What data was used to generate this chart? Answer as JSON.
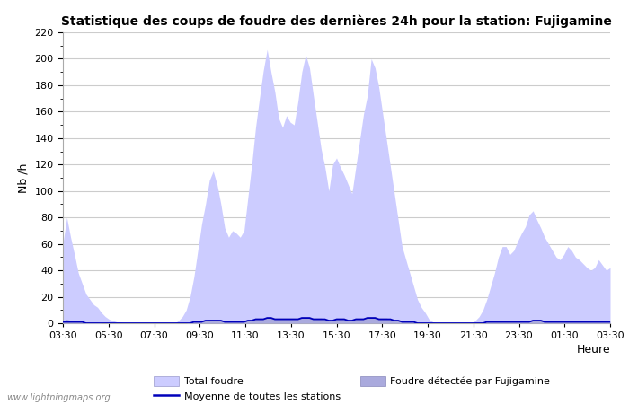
{
  "title": "Statistique des coups de foudre des dernières 24h pour la station: Fujigamine",
  "xlabel": "Heure",
  "ylabel": "Nb /h",
  "ylim": [
    0,
    220
  ],
  "yticks": [
    0,
    20,
    40,
    60,
    80,
    100,
    120,
    140,
    160,
    180,
    200,
    220
  ],
  "xtick_labels": [
    "03:30",
    "05:30",
    "07:30",
    "09:30",
    "11:30",
    "13:30",
    "15:30",
    "17:30",
    "19:30",
    "21:30",
    "23:30",
    "01:30",
    "03:30"
  ],
  "watermark": "www.lightningmaps.org",
  "fill_color": "#ccccff",
  "line_color": "#0000bb",
  "local_fill_color": "#aaaadd",
  "legend_labels": [
    "Total foudre",
    "Moyenne de toutes les stations",
    "Foudre détectée par Fujigamine"
  ],
  "total_foudre": [
    60,
    80,
    65,
    52,
    38,
    30,
    22,
    18,
    14,
    12,
    8,
    5,
    3,
    2,
    1,
    1,
    0,
    0,
    0,
    0,
    0,
    0,
    0,
    0,
    0,
    0,
    0,
    0,
    0,
    0,
    2,
    5,
    10,
    20,
    35,
    55,
    75,
    90,
    108,
    115,
    105,
    90,
    72,
    65,
    70,
    68,
    65,
    70,
    95,
    120,
    148,
    170,
    191,
    207,
    190,
    175,
    155,
    148,
    157,
    152,
    150,
    168,
    190,
    203,
    193,
    172,
    152,
    132,
    118,
    100,
    120,
    125,
    118,
    112,
    105,
    98,
    118,
    138,
    158,
    172,
    200,
    193,
    178,
    158,
    138,
    118,
    98,
    78,
    58,
    48,
    38,
    28,
    18,
    12,
    8,
    3,
    1,
    0,
    0,
    0,
    0,
    0,
    0,
    0,
    0,
    0,
    0,
    2,
    5,
    10,
    18,
    28,
    38,
    50,
    58,
    58,
    52,
    55,
    62,
    68,
    73,
    82,
    85,
    78,
    72,
    65,
    60,
    55,
    50,
    48,
    52,
    58,
    55,
    50,
    48,
    45,
    42,
    40,
    42,
    48,
    44,
    40,
    42
  ],
  "fujigamine": [
    2,
    3,
    2,
    2,
    1,
    1,
    1,
    1,
    1,
    1,
    0,
    0,
    0,
    0,
    0,
    0,
    0,
    0,
    0,
    0,
    0,
    0,
    0,
    0,
    0,
    0,
    0,
    0,
    0,
    0,
    0,
    0,
    0,
    1,
    1,
    2,
    2,
    2,
    3,
    3,
    3,
    2,
    2,
    2,
    2,
    2,
    2,
    2,
    3,
    3,
    4,
    4,
    4,
    5,
    5,
    4,
    4,
    4,
    4,
    4,
    4,
    4,
    5,
    5,
    5,
    4,
    4,
    4,
    3,
    3,
    3,
    4,
    4,
    4,
    3,
    3,
    4,
    4,
    4,
    5,
    5,
    5,
    4,
    4,
    4,
    3,
    3,
    3,
    2,
    2,
    2,
    1,
    0,
    0,
    0,
    0,
    0,
    0,
    0,
    0,
    0,
    0,
    0,
    0,
    0,
    0,
    0,
    0,
    0,
    0,
    1,
    1,
    1,
    2,
    2,
    2,
    2,
    2,
    2,
    2,
    2,
    2,
    3,
    3,
    3,
    2,
    2,
    2,
    2,
    2,
    2,
    2,
    2,
    2,
    2,
    2,
    2,
    2,
    2,
    2,
    2,
    2,
    2
  ],
  "moyenne": [
    1,
    1,
    1,
    1,
    1,
    1,
    0,
    0,
    0,
    0,
    0,
    0,
    0,
    0,
    0,
    0,
    0,
    0,
    0,
    0,
    0,
    0,
    0,
    0,
    0,
    0,
    0,
    0,
    0,
    0,
    0,
    0,
    0,
    0,
    1,
    1,
    1,
    2,
    2,
    2,
    2,
    2,
    1,
    1,
    1,
    1,
    1,
    1,
    2,
    2,
    3,
    3,
    3,
    4,
    4,
    3,
    3,
    3,
    3,
    3,
    3,
    3,
    4,
    4,
    4,
    3,
    3,
    3,
    3,
    2,
    2,
    3,
    3,
    3,
    2,
    2,
    3,
    3,
    3,
    4,
    4,
    4,
    3,
    3,
    3,
    3,
    2,
    2,
    1,
    1,
    1,
    1,
    0,
    0,
    0,
    0,
    0,
    0,
    0,
    0,
    0,
    0,
    0,
    0,
    0,
    0,
    0,
    0,
    0,
    0,
    1,
    1,
    1,
    1,
    1,
    1,
    1,
    1,
    1,
    1,
    1,
    1,
    2,
    2,
    2,
    1,
    1,
    1,
    1,
    1,
    1,
    1,
    1,
    1,
    1,
    1,
    1,
    1,
    1,
    1,
    1,
    1,
    1
  ],
  "n_points": 143
}
